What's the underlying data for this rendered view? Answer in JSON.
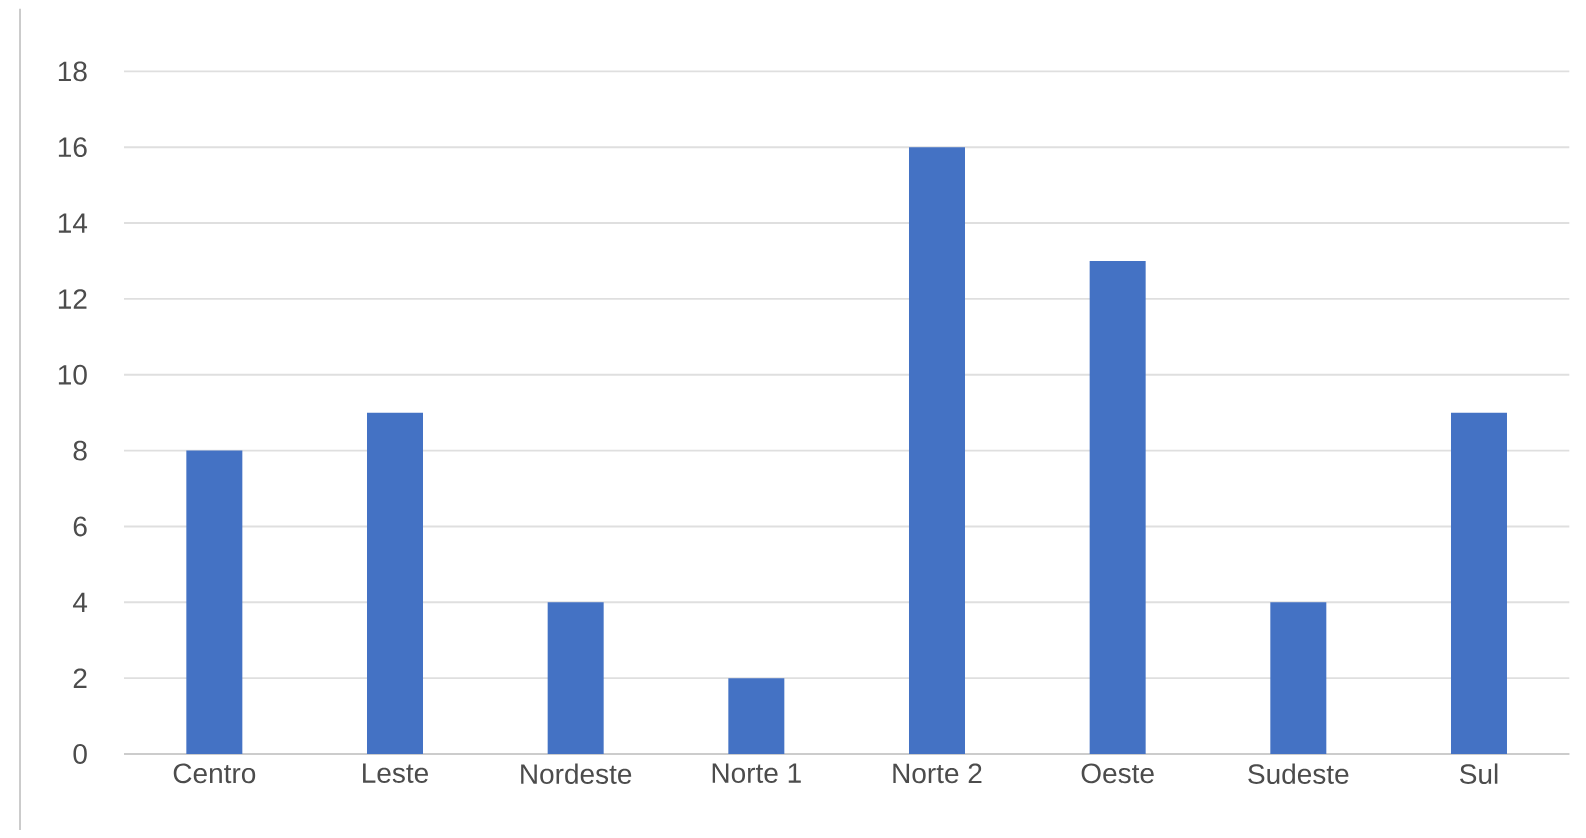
{
  "chart_data": {
    "type": "bar",
    "categories": [
      "Centro",
      "Leste",
      "Nordeste",
      "Norte 1",
      "Norte 2",
      "Oeste",
      "Sudeste",
      "Sul"
    ],
    "values": [
      8,
      9,
      4,
      2,
      16,
      13,
      4,
      9
    ],
    "color": "#4472c4",
    "ylim": [
      0,
      18
    ],
    "yticks": [
      0,
      2,
      4,
      6,
      8,
      10,
      12,
      14,
      16,
      18
    ],
    "grid": "y"
  }
}
